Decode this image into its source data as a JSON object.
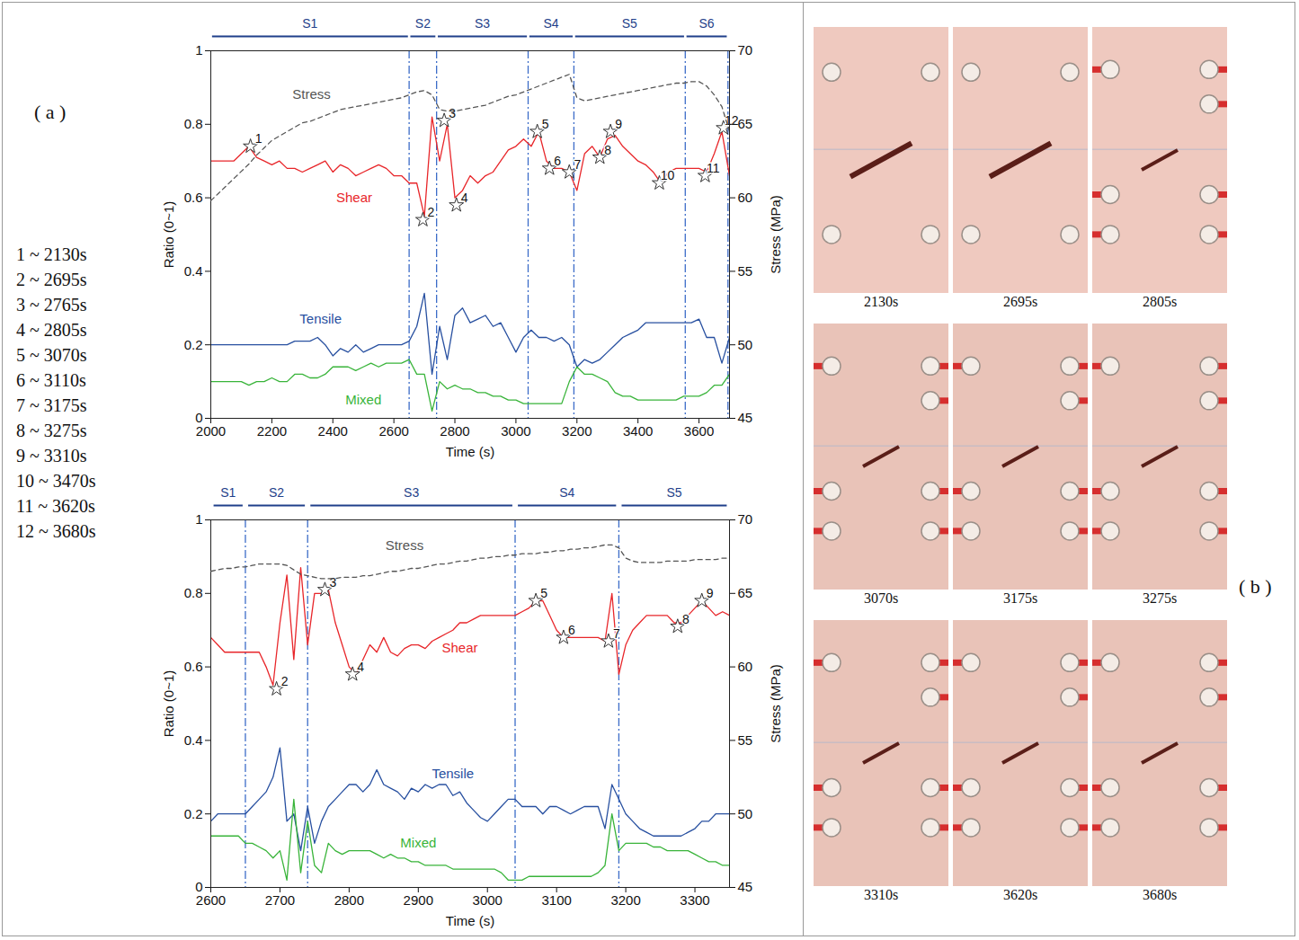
{
  "panel_labels": {
    "a": "( a )",
    "b": "( b )"
  },
  "time_list": [
    "1 ~ 2130s",
    "2 ~ 2695s",
    "3 ~ 2765s",
    "4 ~ 2805s",
    "5 ~ 3070s",
    "6 ~ 3110s",
    "7 ~ 3175s",
    "8 ~ 3275s",
    "9 ~ 3310s",
    "10 ~ 3470s",
    "11 ~ 3620s",
    "12 ~ 3680s"
  ],
  "photos": [
    {
      "caption": "2130s"
    },
    {
      "caption": "2695s"
    },
    {
      "caption": "2805s"
    },
    {
      "caption": "3070s"
    },
    {
      "caption": "3175s"
    },
    {
      "caption": "3275s"
    },
    {
      "caption": "3310s"
    },
    {
      "caption": "3620s"
    },
    {
      "caption": "3680s"
    }
  ],
  "chart_data": [
    {
      "type": "line",
      "x_label": "Time (s)",
      "y_label": "Ratio (0~1)",
      "y2_label": "Stress (MPa)",
      "xlim": [
        2000,
        3700
      ],
      "xticks": [
        2000,
        2200,
        2400,
        2600,
        2800,
        3000,
        3200,
        3400,
        3600
      ],
      "ylim": [
        0,
        1
      ],
      "yticks": [
        0,
        0.2,
        0.4,
        0.6,
        0.8,
        1
      ],
      "y2lim": [
        45,
        70
      ],
      "y2ticks": [
        45,
        50,
        55,
        60,
        65,
        70
      ],
      "x": [
        2000,
        2025,
        2050,
        2075,
        2100,
        2125,
        2150,
        2175,
        2200,
        2225,
        2250,
        2275,
        2300,
        2325,
        2350,
        2375,
        2400,
        2425,
        2450,
        2475,
        2500,
        2525,
        2550,
        2575,
        2600,
        2625,
        2650,
        2675,
        2700,
        2725,
        2750,
        2775,
        2800,
        2825,
        2850,
        2875,
        2900,
        2925,
        2950,
        2975,
        3000,
        3025,
        3050,
        3075,
        3100,
        3125,
        3150,
        3175,
        3200,
        3225,
        3250,
        3275,
        3300,
        3325,
        3350,
        3375,
        3400,
        3425,
        3450,
        3475,
        3500,
        3525,
        3550,
        3575,
        3600,
        3625,
        3650,
        3675,
        3700
      ],
      "series": [
        {
          "name": "Shear",
          "color": "#e8262a",
          "values": [
            0.7,
            0.7,
            0.7,
            0.7,
            0.72,
            0.74,
            0.71,
            0.7,
            0.69,
            0.7,
            0.68,
            0.68,
            0.67,
            0.68,
            0.69,
            0.7,
            0.67,
            0.69,
            0.68,
            0.66,
            0.67,
            0.68,
            0.69,
            0.68,
            0.66,
            0.66,
            0.64,
            0.64,
            0.55,
            0.82,
            0.7,
            0.8,
            0.6,
            0.62,
            0.66,
            0.64,
            0.66,
            0.67,
            0.7,
            0.73,
            0.74,
            0.76,
            0.74,
            0.78,
            0.7,
            0.68,
            0.68,
            0.67,
            0.62,
            0.72,
            0.74,
            0.71,
            0.76,
            0.77,
            0.74,
            0.72,
            0.7,
            0.69,
            0.67,
            0.64,
            0.67,
            0.68,
            0.68,
            0.68,
            0.68,
            0.67,
            0.72,
            0.78,
            0.66
          ]
        },
        {
          "name": "Tensile",
          "color": "#2850a0",
          "values": [
            0.2,
            0.2,
            0.2,
            0.2,
            0.2,
            0.2,
            0.2,
            0.2,
            0.2,
            0.2,
            0.2,
            0.21,
            0.21,
            0.21,
            0.22,
            0.2,
            0.17,
            0.19,
            0.18,
            0.2,
            0.18,
            0.19,
            0.2,
            0.2,
            0.2,
            0.2,
            0.21,
            0.25,
            0.34,
            0.12,
            0.25,
            0.16,
            0.28,
            0.3,
            0.26,
            0.27,
            0.28,
            0.25,
            0.26,
            0.22,
            0.18,
            0.22,
            0.24,
            0.22,
            0.22,
            0.21,
            0.22,
            0.2,
            0.14,
            0.16,
            0.15,
            0.16,
            0.18,
            0.2,
            0.22,
            0.23,
            0.24,
            0.26,
            0.26,
            0.26,
            0.26,
            0.26,
            0.26,
            0.26,
            0.27,
            0.22,
            0.22,
            0.15,
            0.22
          ]
        },
        {
          "name": "Mixed",
          "color": "#39b43a",
          "values": [
            0.1,
            0.1,
            0.1,
            0.1,
            0.1,
            0.09,
            0.1,
            0.1,
            0.11,
            0.1,
            0.1,
            0.12,
            0.12,
            0.11,
            0.11,
            0.12,
            0.14,
            0.14,
            0.14,
            0.13,
            0.14,
            0.15,
            0.14,
            0.15,
            0.15,
            0.15,
            0.16,
            0.12,
            0.12,
            0.02,
            0.1,
            0.08,
            0.09,
            0.08,
            0.08,
            0.07,
            0.07,
            0.06,
            0.06,
            0.05,
            0.05,
            0.04,
            0.04,
            0.04,
            0.04,
            0.04,
            0.04,
            0.1,
            0.14,
            0.12,
            0.12,
            0.11,
            0.1,
            0.07,
            0.06,
            0.06,
            0.05,
            0.05,
            0.05,
            0.05,
            0.05,
            0.05,
            0.06,
            0.06,
            0.06,
            0.07,
            0.09,
            0.09,
            0.12
          ]
        },
        {
          "name": "Stress",
          "color": "#555555",
          "axis": "y2",
          "line_style": "dashed",
          "values": [
            59.8,
            60.3,
            60.8,
            61.3,
            61.8,
            62.3,
            62.9,
            63.4,
            63.9,
            64.2,
            64.5,
            64.8,
            65.1,
            65.2,
            65.4,
            65.6,
            65.8,
            66.0,
            66.1,
            66.2,
            66.3,
            66.4,
            66.5,
            66.6,
            66.7,
            66.8,
            67.0,
            67.2,
            67.3,
            67.0,
            66.0,
            65.9,
            65.9,
            66.0,
            66.1,
            66.2,
            66.3,
            66.5,
            66.7,
            66.9,
            67.0,
            67.2,
            67.4,
            67.6,
            67.8,
            68.0,
            68.2,
            68.4,
            66.8,
            66.6,
            66.7,
            66.8,
            66.9,
            67.0,
            67.1,
            67.2,
            67.3,
            67.4,
            67.5,
            67.6,
            67.7,
            67.8,
            67.8,
            67.9,
            67.9,
            67.6,
            67.0,
            66.2,
            64.5
          ]
        }
      ],
      "stages": [
        {
          "name": "S1",
          "start": 2000,
          "end": 2650
        },
        {
          "name": "S2",
          "start": 2650,
          "end": 2740
        },
        {
          "name": "S3",
          "start": 2740,
          "end": 3040
        },
        {
          "name": "S4",
          "start": 3040,
          "end": 3190
        },
        {
          "name": "S5",
          "start": 3190,
          "end": 3555
        },
        {
          "name": "S6",
          "start": 3555,
          "end": 3695
        }
      ],
      "markers": [
        {
          "label": "1",
          "x": 2130,
          "y": 0.74
        },
        {
          "label": "2",
          "x": 2695,
          "y": 0.54
        },
        {
          "label": "3",
          "x": 2765,
          "y": 0.81
        },
        {
          "label": "4",
          "x": 2805,
          "y": 0.58
        },
        {
          "label": "5",
          "x": 3070,
          "y": 0.78
        },
        {
          "label": "6",
          "x": 3110,
          "y": 0.68
        },
        {
          "label": "7",
          "x": 3175,
          "y": 0.67
        },
        {
          "label": "8",
          "x": 3275,
          "y": 0.71
        },
        {
          "label": "9",
          "x": 3310,
          "y": 0.78
        },
        {
          "label": "10",
          "x": 3470,
          "y": 0.64
        },
        {
          "label": "11",
          "x": 3620,
          "y": 0.66
        },
        {
          "label": "12",
          "x": 3680,
          "y": 0.79
        }
      ],
      "annotations": [
        {
          "text": "Stress",
          "x": 2330,
          "y": 0.88
        },
        {
          "text": "Shear",
          "x": 2470,
          "y": 0.6
        },
        {
          "text": "Tensile",
          "x": 2360,
          "y": 0.27
        },
        {
          "text": "Mixed",
          "x": 2500,
          "y": 0.05
        }
      ]
    },
    {
      "type": "line",
      "x_label": "Time (s)",
      "y_label": "Ratio (0~1)",
      "y2_label": "Stress (MPa)",
      "xlim": [
        2600,
        3350
      ],
      "xticks": [
        2600,
        2700,
        2800,
        2900,
        3000,
        3100,
        3200,
        3300
      ],
      "ylim": [
        0,
        1
      ],
      "yticks": [
        0,
        0.2,
        0.4,
        0.6,
        0.8,
        1
      ],
      "y2lim": [
        45,
        70
      ],
      "y2ticks": [
        45,
        50,
        55,
        60,
        65,
        70
      ],
      "x": [
        2600,
        2610,
        2620,
        2630,
        2640,
        2650,
        2660,
        2670,
        2680,
        2690,
        2700,
        2710,
        2720,
        2730,
        2740,
        2750,
        2760,
        2770,
        2780,
        2790,
        2800,
        2810,
        2820,
        2830,
        2840,
        2850,
        2860,
        2870,
        2880,
        2890,
        2900,
        2910,
        2920,
        2930,
        2940,
        2950,
        2960,
        2970,
        2980,
        2990,
        3000,
        3010,
        3020,
        3030,
        3040,
        3050,
        3060,
        3070,
        3080,
        3090,
        3100,
        3110,
        3120,
        3130,
        3140,
        3150,
        3160,
        3170,
        3180,
        3190,
        3200,
        3210,
        3220,
        3230,
        3240,
        3250,
        3260,
        3270,
        3280,
        3290,
        3300,
        3310,
        3320,
        3330,
        3340,
        3350
      ],
      "series": [
        {
          "name": "Shear",
          "color": "#e8262a",
          "values": [
            0.68,
            0.66,
            0.64,
            0.64,
            0.64,
            0.64,
            0.64,
            0.64,
            0.6,
            0.55,
            0.72,
            0.85,
            0.62,
            0.87,
            0.66,
            0.8,
            0.8,
            0.81,
            0.72,
            0.66,
            0.6,
            0.58,
            0.62,
            0.66,
            0.64,
            0.68,
            0.64,
            0.63,
            0.65,
            0.66,
            0.66,
            0.65,
            0.67,
            0.68,
            0.69,
            0.7,
            0.72,
            0.72,
            0.73,
            0.74,
            0.74,
            0.74,
            0.74,
            0.74,
            0.74,
            0.75,
            0.76,
            0.78,
            0.78,
            0.74,
            0.7,
            0.68,
            0.68,
            0.68,
            0.68,
            0.68,
            0.68,
            0.67,
            0.8,
            0.58,
            0.66,
            0.7,
            0.72,
            0.74,
            0.74,
            0.74,
            0.74,
            0.72,
            0.72,
            0.74,
            0.76,
            0.78,
            0.76,
            0.74,
            0.75,
            0.74
          ]
        },
        {
          "name": "Tensile",
          "color": "#2850a0",
          "values": [
            0.18,
            0.2,
            0.2,
            0.2,
            0.2,
            0.2,
            0.22,
            0.24,
            0.26,
            0.3,
            0.38,
            0.18,
            0.2,
            0.1,
            0.22,
            0.12,
            0.18,
            0.22,
            0.24,
            0.26,
            0.28,
            0.28,
            0.26,
            0.28,
            0.32,
            0.28,
            0.27,
            0.26,
            0.24,
            0.27,
            0.26,
            0.28,
            0.27,
            0.28,
            0.28,
            0.25,
            0.26,
            0.23,
            0.21,
            0.19,
            0.18,
            0.2,
            0.22,
            0.24,
            0.24,
            0.22,
            0.22,
            0.22,
            0.2,
            0.22,
            0.22,
            0.21,
            0.2,
            0.21,
            0.22,
            0.22,
            0.22,
            0.16,
            0.28,
            0.24,
            0.2,
            0.18,
            0.16,
            0.15,
            0.14,
            0.14,
            0.14,
            0.14,
            0.14,
            0.15,
            0.16,
            0.18,
            0.18,
            0.2,
            0.2,
            0.2
          ]
        },
        {
          "name": "Mixed",
          "color": "#39b43a",
          "values": [
            0.14,
            0.14,
            0.14,
            0.14,
            0.14,
            0.12,
            0.12,
            0.11,
            0.1,
            0.08,
            0.1,
            0.02,
            0.24,
            0.04,
            0.18,
            0.06,
            0.04,
            0.12,
            0.1,
            0.09,
            0.1,
            0.1,
            0.1,
            0.1,
            0.09,
            0.08,
            0.09,
            0.08,
            0.08,
            0.07,
            0.07,
            0.06,
            0.06,
            0.06,
            0.06,
            0.05,
            0.05,
            0.05,
            0.05,
            0.05,
            0.05,
            0.05,
            0.04,
            0.02,
            0.02,
            0.02,
            0.03,
            0.03,
            0.03,
            0.03,
            0.03,
            0.03,
            0.03,
            0.03,
            0.03,
            0.03,
            0.04,
            0.06,
            0.2,
            0.1,
            0.12,
            0.12,
            0.12,
            0.12,
            0.11,
            0.11,
            0.1,
            0.1,
            0.1,
            0.1,
            0.09,
            0.08,
            0.07,
            0.07,
            0.06,
            0.06
          ]
        },
        {
          "name": "Stress",
          "color": "#555555",
          "axis": "y2",
          "line_style": "dashed",
          "values": [
            66.5,
            66.6,
            66.7,
            66.7,
            66.8,
            66.8,
            66.9,
            67.0,
            67.0,
            67.0,
            67.0,
            66.9,
            66.6,
            66.3,
            66.2,
            66.1,
            66.0,
            66.0,
            66.0,
            66.1,
            66.1,
            66.1,
            66.2,
            66.2,
            66.3,
            66.4,
            66.5,
            66.5,
            66.6,
            66.7,
            66.7,
            66.8,
            66.9,
            67.0,
            67.0,
            67.1,
            67.2,
            67.2,
            67.3,
            67.4,
            67.4,
            67.5,
            67.5,
            67.6,
            67.6,
            67.7,
            67.7,
            67.7,
            67.8,
            67.8,
            67.9,
            67.9,
            68.0,
            68.0,
            68.1,
            68.1,
            68.2,
            68.3,
            68.3,
            68.1,
            67.4,
            67.2,
            67.1,
            67.1,
            67.1,
            67.1,
            67.2,
            67.2,
            67.2,
            67.2,
            67.3,
            67.3,
            67.3,
            67.3,
            67.4,
            67.4
          ]
        }
      ],
      "stages": [
        {
          "name": "S1",
          "start": 2600,
          "end": 2650
        },
        {
          "name": "S2",
          "start": 2650,
          "end": 2740
        },
        {
          "name": "S3",
          "start": 2740,
          "end": 3040
        },
        {
          "name": "S4",
          "start": 3040,
          "end": 3190
        },
        {
          "name": "S5",
          "start": 3190,
          "end": 3350
        }
      ],
      "markers": [
        {
          "label": "2",
          "x": 2695,
          "y": 0.54
        },
        {
          "label": "3",
          "x": 2765,
          "y": 0.81
        },
        {
          "label": "4",
          "x": 2805,
          "y": 0.58
        },
        {
          "label": "5",
          "x": 3070,
          "y": 0.78
        },
        {
          "label": "6",
          "x": 3110,
          "y": 0.68
        },
        {
          "label": "7",
          "x": 3175,
          "y": 0.67
        },
        {
          "label": "8",
          "x": 3275,
          "y": 0.71
        },
        {
          "label": "9",
          "x": 3310,
          "y": 0.78
        }
      ],
      "annotations": [
        {
          "text": "Stress",
          "x": 2880,
          "y": 0.93
        },
        {
          "text": "Shear",
          "x": 2960,
          "y": 0.65
        },
        {
          "text": "Tensile",
          "x": 2950,
          "y": 0.31
        },
        {
          "text": "Mixed",
          "x": 2900,
          "y": 0.12
        }
      ]
    }
  ]
}
